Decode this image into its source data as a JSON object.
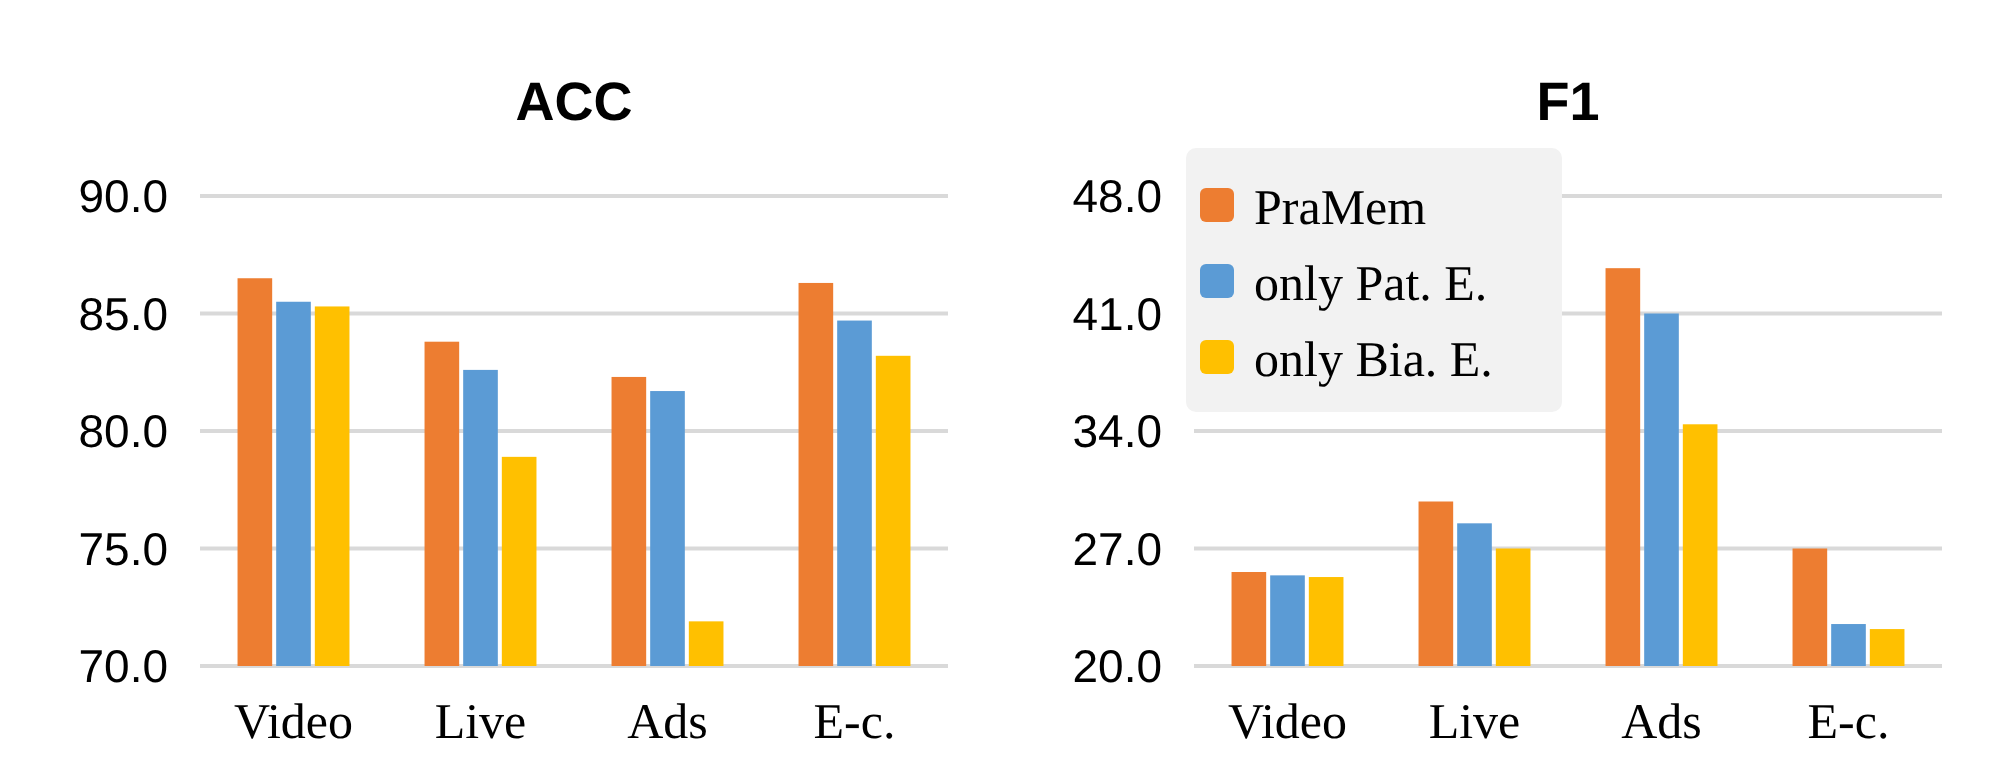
{
  "chart_data": [
    {
      "type": "bar",
      "title": "ACC",
      "categories": [
        "Video",
        "Live",
        "Ads",
        "E-c."
      ],
      "ylim": [
        70,
        90
      ],
      "yticks": [
        {
          "value": 70,
          "label": "70.0"
        },
        {
          "value": 75,
          "label": "75.0"
        },
        {
          "value": 80,
          "label": "80.0"
        },
        {
          "value": 85,
          "label": "85.0"
        },
        {
          "value": 90,
          "label": "90.0"
        }
      ],
      "grid": "y",
      "series": [
        {
          "color": "#ed7d31",
          "values": [
            86.5,
            83.8,
            82.3,
            86.3
          ]
        },
        {
          "color": "#5b9bd5",
          "values": [
            85.5,
            82.6,
            81.7,
            84.7
          ]
        },
        {
          "color": "#ffc000",
          "values": [
            85.3,
            78.9,
            71.9,
            83.2
          ]
        }
      ]
    },
    {
      "type": "bar",
      "title": "F1",
      "categories": [
        "Video",
        "Live",
        "Ads",
        "E-c."
      ],
      "ylim": [
        20,
        48
      ],
      "yticks": [
        {
          "value": 20,
          "label": "20.0"
        },
        {
          "value": 27,
          "label": "27.0"
        },
        {
          "value": 34,
          "label": "34.0"
        },
        {
          "value": 41,
          "label": "41.0"
        },
        {
          "value": 48,
          "label": "48.0"
        }
      ],
      "grid": "y",
      "legend": "top left",
      "series": [
        {
          "name": "PraMem",
          "color": "#ed7d31",
          "values": [
            25.6,
            29.8,
            43.7,
            27.0
          ]
        },
        {
          "name": "only Pat. E.",
          "color": "#5b9bd5",
          "values": [
            25.4,
            28.5,
            41.0,
            22.5
          ]
        },
        {
          "name": "only Bia. E.",
          "color": "#ffc000",
          "values": [
            25.3,
            27.0,
            34.4,
            22.2
          ]
        }
      ]
    }
  ]
}
